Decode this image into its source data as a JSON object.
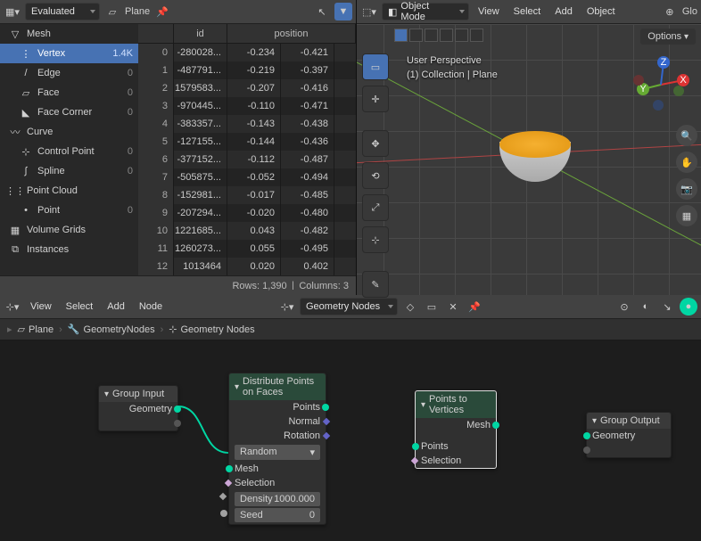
{
  "spreadsheet": {
    "mode": "Evaluated",
    "object": "Plane",
    "cols": [
      "id",
      "position"
    ],
    "rows_label": "Rows: 1,390",
    "cols_label": "Columns: 3",
    "tree": [
      {
        "name": "Mesh",
        "type": "head",
        "icon": "▽"
      },
      {
        "name": "Vertex",
        "count": "1.4K",
        "sel": true,
        "sub": true,
        "icon": "⋮"
      },
      {
        "name": "Edge",
        "count": "0",
        "sub": true,
        "icon": "/"
      },
      {
        "name": "Face",
        "count": "0",
        "sub": true,
        "icon": "▱"
      },
      {
        "name": "Face Corner",
        "count": "0",
        "sub": true,
        "icon": "◣"
      },
      {
        "name": "Curve",
        "type": "head",
        "icon": "〰"
      },
      {
        "name": "Control Point",
        "count": "0",
        "sub": true,
        "icon": "⊹"
      },
      {
        "name": "Spline",
        "count": "0",
        "sub": true,
        "icon": "∫"
      },
      {
        "name": "Point Cloud",
        "type": "head",
        "icon": "⋮⋮"
      },
      {
        "name": "Point",
        "count": "0",
        "sub": true,
        "icon": "•"
      },
      {
        "name": "Volume Grids",
        "type": "head",
        "icon": "▦"
      },
      {
        "name": "Instances",
        "type": "head",
        "icon": "⧉"
      }
    ],
    "data": [
      {
        "i": 0,
        "id": "-280028...",
        "px": "-0.234",
        "py": "-0.421"
      },
      {
        "i": 1,
        "id": "-487791...",
        "px": "-0.219",
        "py": "-0.397"
      },
      {
        "i": 2,
        "id": "1579583...",
        "px": "-0.207",
        "py": "-0.416"
      },
      {
        "i": 3,
        "id": "-970445...",
        "px": "-0.110",
        "py": "-0.471"
      },
      {
        "i": 4,
        "id": "-383357...",
        "px": "-0.143",
        "py": "-0.438"
      },
      {
        "i": 5,
        "id": "-127155...",
        "px": "-0.144",
        "py": "-0.436"
      },
      {
        "i": 6,
        "id": "-377152...",
        "px": "-0.112",
        "py": "-0.487"
      },
      {
        "i": 7,
        "id": "-505875...",
        "px": "-0.052",
        "py": "-0.494"
      },
      {
        "i": 8,
        "id": "-152981...",
        "px": "-0.017",
        "py": "-0.485"
      },
      {
        "i": 9,
        "id": "-207294...",
        "px": "-0.020",
        "py": "-0.480"
      },
      {
        "i": 10,
        "id": "1221685...",
        "px": "0.043",
        "py": "-0.482"
      },
      {
        "i": 11,
        "id": "1260273...",
        "px": "0.055",
        "py": "-0.495"
      },
      {
        "i": 12,
        "id": "1013464",
        "px": "0.020",
        "py": "0.402"
      }
    ]
  },
  "viewport": {
    "mode": "Object Mode",
    "menus": [
      "View",
      "Select",
      "Add",
      "Object"
    ],
    "info1": "User Perspective",
    "info2": "(1) Collection | Plane",
    "global": "Glo",
    "options": "Options"
  },
  "nodeeditor": {
    "menus": [
      "View",
      "Select",
      "Add",
      "Node"
    ],
    "datablock": "Geometry Nodes",
    "breadcrumb": [
      "Plane",
      "GeometryNodes",
      "Geometry Nodes"
    ],
    "nodes": {
      "group_input": {
        "title": "Group Input",
        "out": [
          "Geometry"
        ]
      },
      "distribute": {
        "title": "Distribute Points on Faces",
        "outs": [
          "Points",
          "Normal",
          "Rotation"
        ],
        "mode": "Random",
        "ins": [
          "Mesh",
          "Selection"
        ],
        "density_l": "Density",
        "density_v": "1000.000",
        "seed_l": "Seed",
        "seed_v": "0"
      },
      "p2v": {
        "title": "Points to Vertices",
        "out": "Mesh",
        "ins": [
          "Points",
          "Selection"
        ]
      },
      "group_output": {
        "title": "Group Output",
        "in": "Geometry"
      }
    }
  },
  "colors": {
    "accent": "#4772b3",
    "geo": "#00d6a3"
  }
}
